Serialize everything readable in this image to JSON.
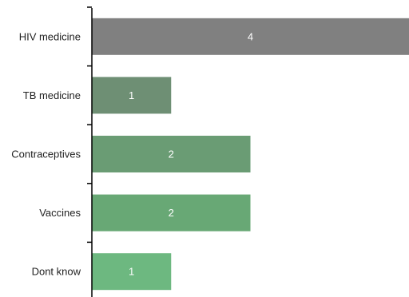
{
  "chart_data": {
    "type": "bar",
    "orientation": "horizontal",
    "categories": [
      "HIV medicine",
      "TB medicine",
      "Contraceptives",
      "Vaccines",
      "Dont know"
    ],
    "values": [
      4,
      1,
      2,
      2,
      1
    ],
    "data_labels": [
      "4",
      "1",
      "2",
      "2",
      "1"
    ],
    "xlim": [
      0,
      4
    ],
    "colors": [
      "#808080",
      "#6e8f74",
      "#6a9c74",
      "#68a875",
      "#6db880"
    ],
    "grid": false,
    "legend": "none"
  }
}
